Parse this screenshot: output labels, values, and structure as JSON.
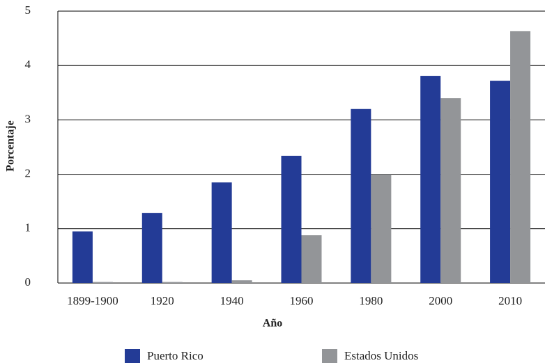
{
  "chart_data": {
    "type": "bar",
    "categories": [
      "1899-1900",
      "1920",
      "1940",
      "1960",
      "1980",
      "2000",
      "2010"
    ],
    "series": [
      {
        "name": "Puerto Rico",
        "color": "#233b96",
        "values": [
          0.95,
          1.29,
          1.85,
          2.34,
          3.2,
          3.81,
          3.72
        ]
      },
      {
        "name": "Estados Unidos",
        "color": "#939598",
        "values": [
          0.02,
          0.02,
          0.05,
          0.88,
          2.0,
          3.4,
          4.63
        ]
      }
    ],
    "xlabel": "Año",
    "ylabel": "Porcentaje",
    "ylim": [
      0,
      5
    ],
    "yticks": [
      0,
      1,
      2,
      3,
      4,
      5
    ],
    "grid": true
  }
}
